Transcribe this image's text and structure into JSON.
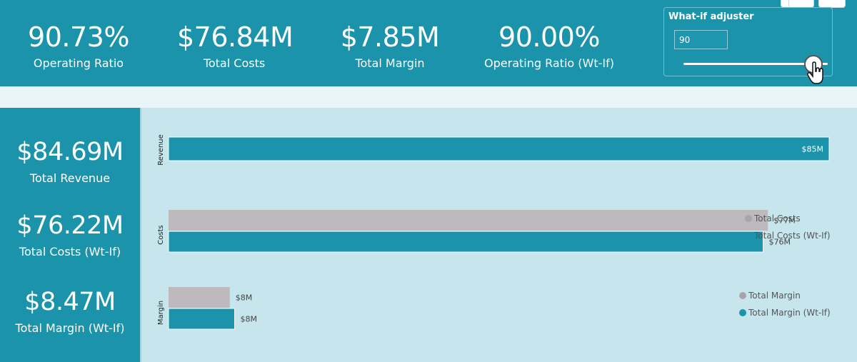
{
  "header": {
    "kpis": [
      {
        "value": "90.73%",
        "label": "Operating Ratio"
      },
      {
        "value": "$76.84M",
        "label": "Total Costs"
      },
      {
        "value": "$7.85M",
        "label": "Total Margin"
      },
      {
        "value": "90.00%",
        "label": "Operating Ratio (Wt-If)"
      }
    ]
  },
  "whatif": {
    "title": "What-if adjuster",
    "value": "90",
    "slider_level": 0.9
  },
  "sidebar": {
    "kpis": [
      {
        "value": "$84.69M",
        "label": "Total Revenue"
      },
      {
        "value": "$76.22M",
        "label": "Total Costs (Wt-If)"
      },
      {
        "value": "$8.47M",
        "label": "Total Margin (Wt-If)"
      }
    ]
  },
  "colors": {
    "teal": "#1a93ab",
    "grey": "#bdb9bd",
    "panel_bg": "#c7e5ec"
  },
  "chart_data": {
    "type": "bar",
    "orientation": "horizontal",
    "groups": [
      {
        "name": "Revenue",
        "bars": [
          {
            "series": "Revenue",
            "value": 84.69,
            "label": "$85M",
            "color": "#1a93ab",
            "label_inside": true
          }
        ]
      },
      {
        "name": "Costs",
        "bars": [
          {
            "series": "Total Costs",
            "value": 76.84,
            "label": "$77M",
            "color": "#bdb9bd"
          },
          {
            "series": "Total Costs (Wt-If)",
            "value": 76.22,
            "label": "$76M",
            "color": "#1a93ab"
          }
        ],
        "legend": [
          "Total Costs",
          "Total Costs (Wt-If)"
        ]
      },
      {
        "name": "Margin",
        "bars": [
          {
            "series": "Total Margin",
            "value": 7.85,
            "label": "$8M",
            "color": "#bdb9bd"
          },
          {
            "series": "Total Margin (Wt-If)",
            "value": 8.47,
            "label": "$8M",
            "color": "#1a93ab"
          }
        ],
        "legend": [
          "Total Margin",
          "Total Margin (Wt-If)"
        ]
      }
    ],
    "xmax": 84.69
  }
}
